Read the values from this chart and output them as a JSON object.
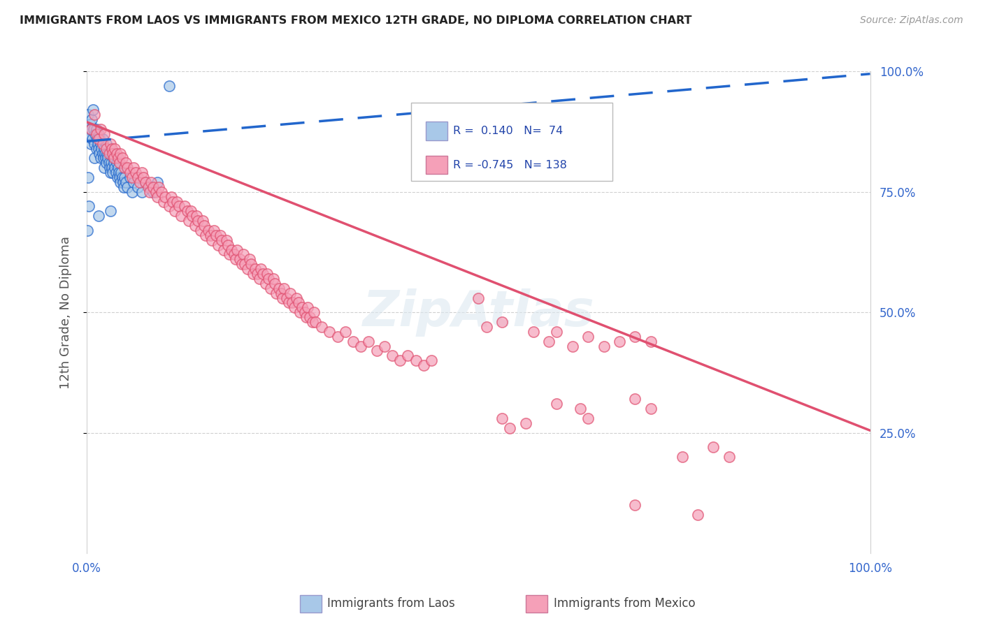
{
  "title": "IMMIGRANTS FROM LAOS VS IMMIGRANTS FROM MEXICO 12TH GRADE, NO DIPLOMA CORRELATION CHART",
  "source": "Source: ZipAtlas.com",
  "ylabel": "12th Grade, No Diploma",
  "legend_laos_label": "Immigrants from Laos",
  "legend_mexico_label": "Immigrants from Mexico",
  "laos_color": "#a8c8e8",
  "mexico_color": "#f5a0b8",
  "laos_line_color": "#2266cc",
  "mexico_line_color": "#e05070",
  "laos_line": [
    0.0,
    0.855,
    1.0,
    0.995
  ],
  "mexico_line": [
    0.0,
    0.895,
    1.0,
    0.255
  ],
  "laos_scatter": [
    [
      0.001,
      0.88
    ],
    [
      0.002,
      0.91
    ],
    [
      0.003,
      0.87
    ],
    [
      0.004,
      0.89
    ],
    [
      0.005,
      0.88
    ],
    [
      0.005,
      0.85
    ],
    [
      0.006,
      0.9
    ],
    [
      0.007,
      0.86
    ],
    [
      0.008,
      0.92
    ],
    [
      0.009,
      0.88
    ],
    [
      0.01,
      0.85
    ],
    [
      0.01,
      0.82
    ],
    [
      0.011,
      0.87
    ],
    [
      0.012,
      0.88
    ],
    [
      0.012,
      0.84
    ],
    [
      0.013,
      0.86
    ],
    [
      0.014,
      0.85
    ],
    [
      0.015,
      0.84
    ],
    [
      0.015,
      0.87
    ],
    [
      0.016,
      0.83
    ],
    [
      0.017,
      0.86
    ],
    [
      0.018,
      0.85
    ],
    [
      0.018,
      0.82
    ],
    [
      0.019,
      0.84
    ],
    [
      0.02,
      0.83
    ],
    [
      0.02,
      0.86
    ],
    [
      0.021,
      0.82
    ],
    [
      0.022,
      0.84
    ],
    [
      0.022,
      0.8
    ],
    [
      0.023,
      0.83
    ],
    [
      0.024,
      0.82
    ],
    [
      0.025,
      0.85
    ],
    [
      0.025,
      0.81
    ],
    [
      0.026,
      0.83
    ],
    [
      0.027,
      0.82
    ],
    [
      0.028,
      0.81
    ],
    [
      0.029,
      0.8
    ],
    [
      0.03,
      0.83
    ],
    [
      0.03,
      0.79
    ],
    [
      0.031,
      0.81
    ],
    [
      0.032,
      0.8
    ],
    [
      0.033,
      0.79
    ],
    [
      0.034,
      0.82
    ],
    [
      0.035,
      0.81
    ],
    [
      0.036,
      0.8
    ],
    [
      0.037,
      0.79
    ],
    [
      0.038,
      0.81
    ],
    [
      0.039,
      0.78
    ],
    [
      0.04,
      0.8
    ],
    [
      0.041,
      0.79
    ],
    [
      0.042,
      0.78
    ],
    [
      0.043,
      0.77
    ],
    [
      0.044,
      0.79
    ],
    [
      0.045,
      0.78
    ],
    [
      0.046,
      0.77
    ],
    [
      0.047,
      0.76
    ],
    [
      0.048,
      0.78
    ],
    [
      0.05,
      0.77
    ],
    [
      0.052,
      0.76
    ],
    [
      0.055,
      0.78
    ],
    [
      0.058,
      0.75
    ],
    [
      0.06,
      0.77
    ],
    [
      0.065,
      0.76
    ],
    [
      0.07,
      0.75
    ],
    [
      0.075,
      0.77
    ],
    [
      0.08,
      0.76
    ],
    [
      0.085,
      0.75
    ],
    [
      0.09,
      0.77
    ],
    [
      0.003,
      0.72
    ],
    [
      0.001,
      0.67
    ],
    [
      0.105,
      0.97
    ],
    [
      0.002,
      0.78
    ],
    [
      0.015,
      0.7
    ],
    [
      0.03,
      0.71
    ]
  ],
  "mexico_scatter": [
    [
      0.005,
      0.88
    ],
    [
      0.01,
      0.91
    ],
    [
      0.012,
      0.87
    ],
    [
      0.015,
      0.86
    ],
    [
      0.018,
      0.88
    ],
    [
      0.02,
      0.85
    ],
    [
      0.022,
      0.87
    ],
    [
      0.025,
      0.84
    ],
    [
      0.028,
      0.83
    ],
    [
      0.03,
      0.85
    ],
    [
      0.032,
      0.84
    ],
    [
      0.033,
      0.83
    ],
    [
      0.035,
      0.82
    ],
    [
      0.036,
      0.84
    ],
    [
      0.038,
      0.83
    ],
    [
      0.04,
      0.82
    ],
    [
      0.042,
      0.81
    ],
    [
      0.043,
      0.83
    ],
    [
      0.045,
      0.82
    ],
    [
      0.048,
      0.8
    ],
    [
      0.05,
      0.81
    ],
    [
      0.052,
      0.8
    ],
    [
      0.055,
      0.79
    ],
    [
      0.058,
      0.78
    ],
    [
      0.06,
      0.8
    ],
    [
      0.062,
      0.79
    ],
    [
      0.065,
      0.78
    ],
    [
      0.068,
      0.77
    ],
    [
      0.07,
      0.79
    ],
    [
      0.072,
      0.78
    ],
    [
      0.075,
      0.77
    ],
    [
      0.078,
      0.76
    ],
    [
      0.08,
      0.75
    ],
    [
      0.082,
      0.77
    ],
    [
      0.085,
      0.76
    ],
    [
      0.088,
      0.75
    ],
    [
      0.09,
      0.74
    ],
    [
      0.092,
      0.76
    ],
    [
      0.095,
      0.75
    ],
    [
      0.098,
      0.73
    ],
    [
      0.1,
      0.74
    ],
    [
      0.105,
      0.72
    ],
    [
      0.108,
      0.74
    ],
    [
      0.11,
      0.73
    ],
    [
      0.112,
      0.71
    ],
    [
      0.115,
      0.73
    ],
    [
      0.118,
      0.72
    ],
    [
      0.12,
      0.7
    ],
    [
      0.125,
      0.72
    ],
    [
      0.128,
      0.71
    ],
    [
      0.13,
      0.69
    ],
    [
      0.133,
      0.71
    ],
    [
      0.135,
      0.7
    ],
    [
      0.138,
      0.68
    ],
    [
      0.14,
      0.7
    ],
    [
      0.142,
      0.69
    ],
    [
      0.145,
      0.67
    ],
    [
      0.148,
      0.69
    ],
    [
      0.15,
      0.68
    ],
    [
      0.152,
      0.66
    ],
    [
      0.155,
      0.67
    ],
    [
      0.158,
      0.66
    ],
    [
      0.16,
      0.65
    ],
    [
      0.162,
      0.67
    ],
    [
      0.165,
      0.66
    ],
    [
      0.168,
      0.64
    ],
    [
      0.17,
      0.66
    ],
    [
      0.172,
      0.65
    ],
    [
      0.175,
      0.63
    ],
    [
      0.178,
      0.65
    ],
    [
      0.18,
      0.64
    ],
    [
      0.182,
      0.62
    ],
    [
      0.185,
      0.63
    ],
    [
      0.188,
      0.62
    ],
    [
      0.19,
      0.61
    ],
    [
      0.192,
      0.63
    ],
    [
      0.195,
      0.61
    ],
    [
      0.198,
      0.6
    ],
    [
      0.2,
      0.62
    ],
    [
      0.202,
      0.6
    ],
    [
      0.205,
      0.59
    ],
    [
      0.208,
      0.61
    ],
    [
      0.21,
      0.6
    ],
    [
      0.212,
      0.58
    ],
    [
      0.215,
      0.59
    ],
    [
      0.218,
      0.58
    ],
    [
      0.22,
      0.57
    ],
    [
      0.222,
      0.59
    ],
    [
      0.225,
      0.58
    ],
    [
      0.228,
      0.56
    ],
    [
      0.23,
      0.58
    ],
    [
      0.232,
      0.57
    ],
    [
      0.235,
      0.55
    ],
    [
      0.238,
      0.57
    ],
    [
      0.24,
      0.56
    ],
    [
      0.242,
      0.54
    ],
    [
      0.245,
      0.55
    ],
    [
      0.248,
      0.54
    ],
    [
      0.25,
      0.53
    ],
    [
      0.252,
      0.55
    ],
    [
      0.255,
      0.53
    ],
    [
      0.258,
      0.52
    ],
    [
      0.26,
      0.54
    ],
    [
      0.262,
      0.52
    ],
    [
      0.265,
      0.51
    ],
    [
      0.268,
      0.53
    ],
    [
      0.27,
      0.52
    ],
    [
      0.272,
      0.5
    ],
    [
      0.275,
      0.51
    ],
    [
      0.278,
      0.5
    ],
    [
      0.28,
      0.49
    ],
    [
      0.282,
      0.51
    ],
    [
      0.285,
      0.49
    ],
    [
      0.288,
      0.48
    ],
    [
      0.29,
      0.5
    ],
    [
      0.292,
      0.48
    ],
    [
      0.3,
      0.47
    ],
    [
      0.31,
      0.46
    ],
    [
      0.32,
      0.45
    ],
    [
      0.33,
      0.46
    ],
    [
      0.34,
      0.44
    ],
    [
      0.35,
      0.43
    ],
    [
      0.36,
      0.44
    ],
    [
      0.37,
      0.42
    ],
    [
      0.38,
      0.43
    ],
    [
      0.39,
      0.41
    ],
    [
      0.4,
      0.4
    ],
    [
      0.41,
      0.41
    ],
    [
      0.42,
      0.4
    ],
    [
      0.43,
      0.39
    ],
    [
      0.44,
      0.4
    ],
    [
      0.5,
      0.53
    ],
    [
      0.51,
      0.47
    ],
    [
      0.53,
      0.48
    ],
    [
      0.57,
      0.46
    ],
    [
      0.59,
      0.44
    ],
    [
      0.6,
      0.46
    ],
    [
      0.62,
      0.43
    ],
    [
      0.64,
      0.45
    ],
    [
      0.66,
      0.43
    ],
    [
      0.68,
      0.44
    ],
    [
      0.7,
      0.45
    ],
    [
      0.72,
      0.44
    ],
    [
      0.6,
      0.31
    ],
    [
      0.63,
      0.3
    ],
    [
      0.64,
      0.28
    ],
    [
      0.7,
      0.32
    ],
    [
      0.72,
      0.3
    ],
    [
      0.76,
      0.2
    ],
    [
      0.8,
      0.22
    ],
    [
      0.82,
      0.2
    ],
    [
      0.7,
      0.1
    ],
    [
      0.78,
      0.08
    ],
    [
      0.53,
      0.28
    ],
    [
      0.54,
      0.26
    ],
    [
      0.56,
      0.27
    ],
    [
      0.6,
      0.84
    ],
    [
      0.64,
      0.82
    ]
  ],
  "xlim": [
    0.0,
    1.0
  ],
  "ylim": [
    0.0,
    1.0
  ],
  "background_color": "#ffffff",
  "grid_color": "#d0d0d0"
}
